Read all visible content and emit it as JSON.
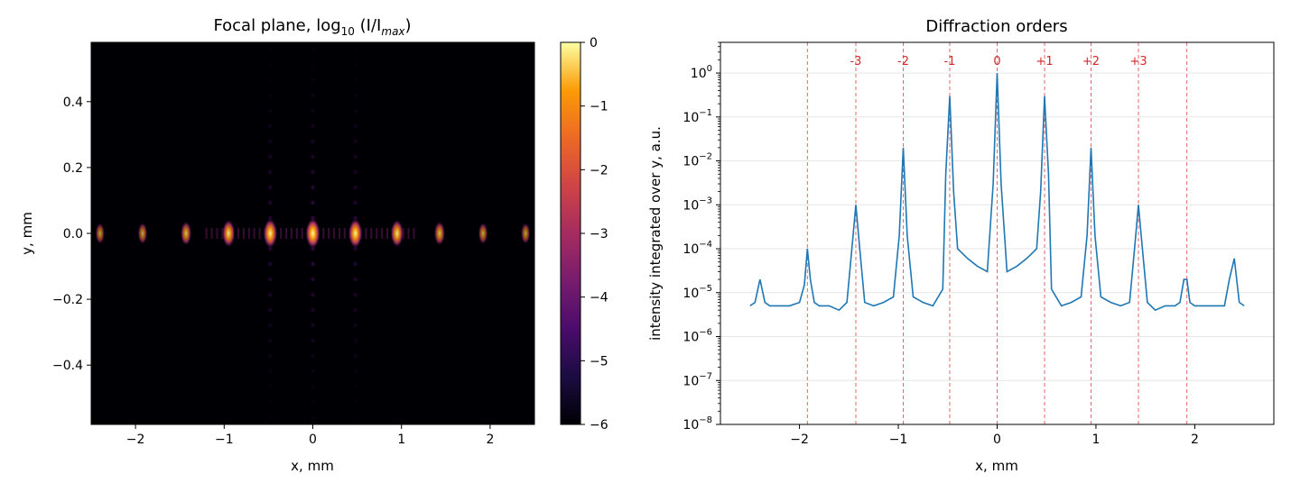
{
  "chart_data": [
    {
      "type": "heatmap",
      "title": "Focal plane, log",
      "title_sub": "10",
      "title_expr": "(I/I",
      "title_expr_sub": "max",
      "title_expr_end": ")",
      "xlabel": "x, mm",
      "ylabel": "y, mm",
      "xlim": [
        -2.5,
        2.5
      ],
      "ylim": [
        -0.58,
        0.58
      ],
      "xticks": [
        {
          "v": -2,
          "label": "−2"
        },
        {
          "v": -1,
          "label": "−1"
        },
        {
          "v": 0,
          "label": "0"
        },
        {
          "v": 1,
          "label": "1"
        },
        {
          "v": 2,
          "label": "2"
        }
      ],
      "yticks": [
        {
          "v": -0.4,
          "label": "−0.4"
        },
        {
          "v": -0.2,
          "label": "−0.2"
        },
        {
          "v": 0.0,
          "label": "0.0"
        },
        {
          "v": 0.2,
          "label": "0.2"
        },
        {
          "v": 0.4,
          "label": "0.4"
        }
      ],
      "colormap": "inferno",
      "colorbar": {
        "range": [
          -6,
          0
        ],
        "ticks": [
          {
            "v": 0,
            "label": "0"
          },
          {
            "v": -1,
            "label": "−1"
          },
          {
            "v": -2,
            "label": "−2"
          },
          {
            "v": -3,
            "label": "−3"
          },
          {
            "v": -4,
            "label": "−4"
          },
          {
            "v": -5,
            "label": "−5"
          },
          {
            "v": -6,
            "label": "−6"
          }
        ]
      },
      "spots": [
        {
          "x": -2.4,
          "log": -3.8
        },
        {
          "x": -1.92,
          "log": -3.6
        },
        {
          "x": -1.43,
          "log": -2.6
        },
        {
          "x": -0.95,
          "log": -1.2
        },
        {
          "x": -0.48,
          "log": -0.4
        },
        {
          "x": 0.0,
          "log": 0.0
        },
        {
          "x": 0.48,
          "log": -0.4
        },
        {
          "x": 0.95,
          "log": -1.2
        },
        {
          "x": 1.43,
          "log": -2.6
        },
        {
          "x": 1.92,
          "log": -3.6
        },
        {
          "x": 2.4,
          "log": -3.8
        }
      ]
    },
    {
      "type": "line",
      "title": "Diffraction orders",
      "xlabel": "x, mm",
      "ylabel": "intensity integrated over y, a.u.",
      "yscale": "log",
      "xlim": [
        -2.8,
        2.8
      ],
      "ylim": [
        1e-08,
        5
      ],
      "grid": "y",
      "line_color": "#1f77b4",
      "order_color": "#d62728",
      "xticks": [
        {
          "v": -2,
          "label": "−2"
        },
        {
          "v": -1,
          "label": "−1"
        },
        {
          "v": 0,
          "label": "0"
        },
        {
          "v": 1,
          "label": "1"
        },
        {
          "v": 2,
          "label": "2"
        }
      ],
      "yticks": [
        {
          "exp": -8,
          "base": "10",
          "sup": "−8"
        },
        {
          "exp": -7,
          "base": "10",
          "sup": "−7"
        },
        {
          "exp": -6,
          "base": "10",
          "sup": "−6"
        },
        {
          "exp": -5,
          "base": "10",
          "sup": "−5"
        },
        {
          "exp": -4,
          "base": "10",
          "sup": "−4"
        },
        {
          "exp": -3,
          "base": "10",
          "sup": "−3"
        },
        {
          "exp": -2,
          "base": "10",
          "sup": "−2"
        },
        {
          "exp": -1,
          "base": "10",
          "sup": "−1"
        },
        {
          "exp": 0,
          "base": "10",
          "sup": "0"
        }
      ],
      "orders": [
        {
          "label": "-3",
          "x": -1.43
        },
        {
          "label": "-2",
          "x": -0.95
        },
        {
          "label": "-1",
          "x": -0.48
        },
        {
          "label": "0",
          "x": 0.0
        },
        {
          "label": "+1",
          "x": 0.48
        },
        {
          "label": "+2",
          "x": 0.95
        },
        {
          "label": "+3",
          "x": 1.43
        }
      ],
      "extra_order_lines": [
        -1.92,
        1.92
      ],
      "series": [
        {
          "x": [
            -2.5,
            -2.45,
            -2.4,
            -2.35,
            -2.3,
            -2.2,
            -2.1,
            -2.0,
            -1.95,
            -1.92,
            -1.89,
            -1.85,
            -1.8,
            -1.7,
            -1.6,
            -1.52,
            -1.47,
            -1.43,
            -1.39,
            -1.34,
            -1.25,
            -1.15,
            -1.05,
            -0.99,
            -0.95,
            -0.91,
            -0.85,
            -0.75,
            -0.65,
            -0.55,
            -0.52,
            -0.48,
            -0.44,
            -0.4,
            -0.3,
            -0.2,
            -0.1,
            -0.04,
            0.0,
            0.04,
            0.1,
            0.2,
            0.3,
            0.4,
            0.44,
            0.48,
            0.52,
            0.55,
            0.65,
            0.75,
            0.85,
            0.91,
            0.95,
            0.99,
            1.05,
            1.15,
            1.25,
            1.34,
            1.39,
            1.43,
            1.47,
            1.52,
            1.6,
            1.7,
            1.8,
            1.85,
            1.89,
            1.92,
            1.95,
            2.0,
            2.1,
            2.2,
            2.3,
            2.35,
            2.4,
            2.45,
            2.5
          ],
          "y": [
            5e-06,
            6e-06,
            2e-05,
            6e-06,
            5e-06,
            5e-06,
            5e-06,
            6e-06,
            1.5e-05,
            0.0001,
            2e-05,
            6e-06,
            5e-06,
            5e-06,
            4e-06,
            6e-06,
            0.0001,
            0.001,
            0.0001,
            6e-06,
            5e-06,
            6e-06,
            8e-06,
            0.0002,
            0.02,
            0.0002,
            8e-06,
            6e-06,
            5e-06,
            1.2e-05,
            0.005,
            0.3,
            0.002,
            0.0001,
            6e-05,
            4e-05,
            3e-05,
            0.003,
            1.0,
            0.003,
            3e-05,
            4e-05,
            6e-05,
            0.0001,
            0.002,
            0.3,
            0.005,
            1.2e-05,
            5e-06,
            6e-06,
            8e-06,
            0.0002,
            0.02,
            0.0002,
            8e-06,
            6e-06,
            5e-06,
            6e-06,
            0.0001,
            0.001,
            0.0001,
            6e-06,
            4e-06,
            5e-06,
            5e-06,
            6e-06,
            2e-05,
            2e-05,
            6e-06,
            5e-06,
            5e-06,
            5e-06,
            5e-06,
            2e-05,
            6e-05,
            6e-06,
            5e-06
          ]
        }
      ]
    }
  ]
}
